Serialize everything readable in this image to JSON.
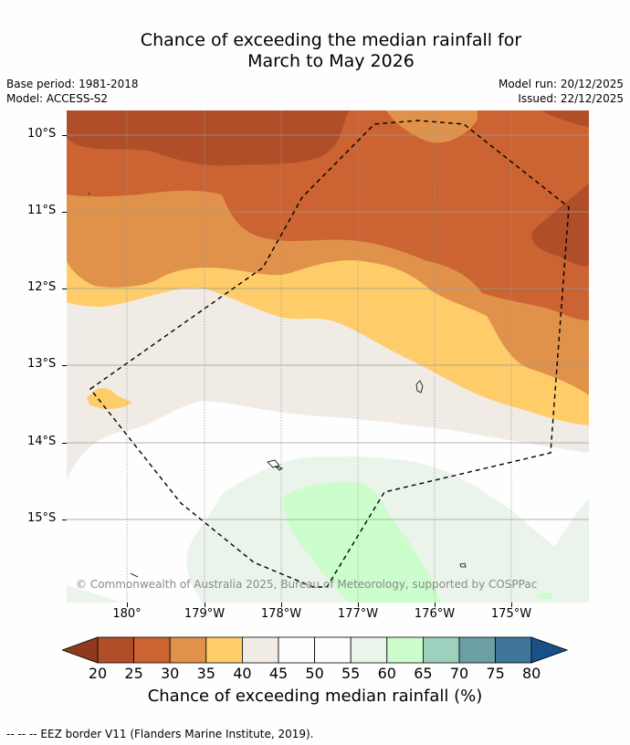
{
  "title": {
    "line1": "Chance of exceeding the median rainfall for",
    "line2": "March to May 2026"
  },
  "meta": {
    "base_period": "Base period: 1981-2018",
    "model": "Model: ACCESS-S2",
    "model_run": "Model run: 20/12/2025",
    "issued": "Issued: 22/12/2025"
  },
  "map": {
    "latitude_labels": [
      "10°S",
      "11°S",
      "12°S",
      "13°S",
      "14°S",
      "15°S"
    ],
    "longitude_labels": [
      "180°",
      "179°W",
      "178°W",
      "177°W",
      "176°W",
      "175°W"
    ],
    "copyright": "© Commonwealth of Australia 2025, Bureau of Meteorology, supported by COSPPac",
    "colors": {
      "c20_25": "#b04e29",
      "c25_30": "#cb6332",
      "c30_35": "#e0924a",
      "c35_40": "#fecd69",
      "c40_45": "#f1ebe6",
      "c45_55": "#fdfefd",
      "c55_60": "#eaf4ea",
      "c60_65": "#ccfdcc",
      "grid": "#9a9a9a"
    }
  },
  "colorbar": {
    "labels": [
      "20",
      "25",
      "30",
      "35",
      "40",
      "45",
      "50",
      "55",
      "60",
      "65",
      "70",
      "75",
      "80"
    ],
    "under_color": "#8f3a1f",
    "over_color": "#1a5088",
    "colors": [
      "#b04e29",
      "#cb6332",
      "#e0924a",
      "#fecd69",
      "#f1ebe6",
      "#fdfefd",
      "#fdfefd",
      "#eaf4ea",
      "#ccfdcc",
      "#9dd1bd",
      "#6b9fa3",
      "#3f7598"
    ],
    "title": "Chance of exceeding median rainfall (%)"
  },
  "footer": {
    "legend": "--  --  -- EEZ border V11 (Flanders Marine Institute, 2019)."
  }
}
